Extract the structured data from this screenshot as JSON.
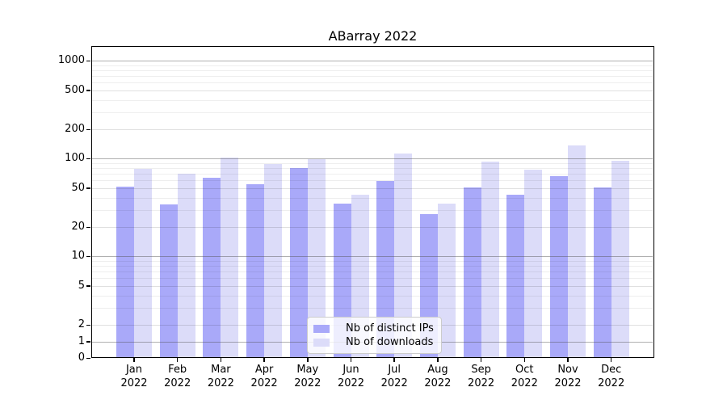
{
  "chart_data": {
    "type": "bar",
    "title": "ABarray 2022",
    "categories": [
      "Jan",
      "Feb",
      "Mar",
      "Apr",
      "May",
      "Jun",
      "Jul",
      "Aug",
      "Sep",
      "Oct",
      "Nov",
      "Dec"
    ],
    "category_year": "2022",
    "series": [
      {
        "name": "Nb of distinct IPs",
        "color": "#a9a9f9",
        "values": [
          52,
          34,
          64,
          55,
          80,
          35,
          59,
          27,
          51,
          43,
          66,
          51
        ]
      },
      {
        "name": "Nb of downloads",
        "color": "#dcdcf9",
        "values": [
          78,
          70,
          103,
          88,
          99,
          43,
          112,
          35,
          93,
          77,
          137,
          95
        ]
      }
    ],
    "yscale": "symlog",
    "linthresh": 2,
    "ylim": [
      0,
      1400
    ],
    "yticks": [
      0,
      1,
      2,
      5,
      10,
      20,
      50,
      100,
      200,
      500,
      1000
    ],
    "grid": "major+minor",
    "legend_position": "lower center",
    "xlabel": "",
    "ylabel": "",
    "colors": {
      "grid_major": "#b0b0b0",
      "grid_minor": "#e3e3e3",
      "spine": "#000000",
      "background": "#ffffff"
    }
  }
}
